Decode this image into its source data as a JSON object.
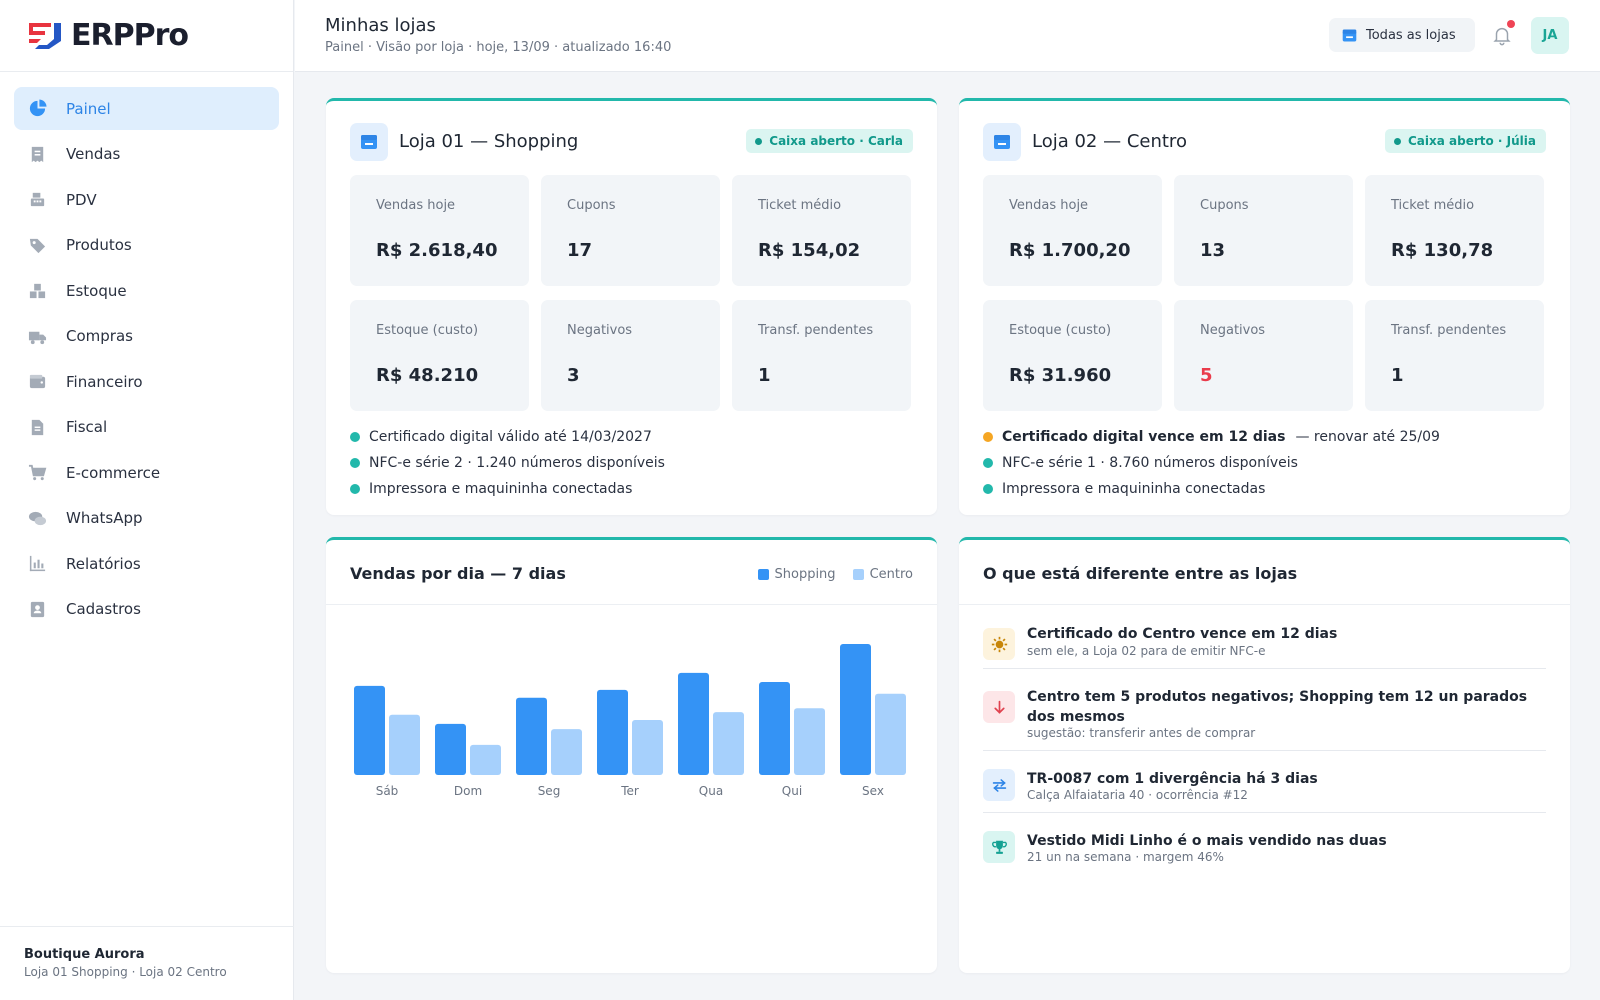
{
  "brand": {
    "name": "ERPPro",
    "accent": "#e8343f",
    "secondary": "#2457c5"
  },
  "sidebar": {
    "items": [
      {
        "label": "Painel",
        "icon": "pie-chart-icon",
        "active": true
      },
      {
        "label": "Vendas",
        "icon": "receipt-icon"
      },
      {
        "label": "PDV",
        "icon": "cash-register-icon"
      },
      {
        "label": "Produtos",
        "icon": "tags-icon"
      },
      {
        "label": "Estoque",
        "icon": "boxes-icon"
      },
      {
        "label": "Compras",
        "icon": "truck-icon"
      },
      {
        "label": "Financeiro",
        "icon": "wallet-icon"
      },
      {
        "label": "Fiscal",
        "icon": "document-icon"
      },
      {
        "label": "E-commerce",
        "icon": "cart-icon"
      },
      {
        "label": "WhatsApp",
        "icon": "chat-icon"
      },
      {
        "label": "Relatórios",
        "icon": "bar-chart-icon"
      },
      {
        "label": "Cadastros",
        "icon": "contact-book-icon"
      }
    ],
    "footer": {
      "company": "Boutique Aurora",
      "stores": "Loja 01 Shopping · Loja 02 Centro"
    }
  },
  "header": {
    "title": "Minhas lojas",
    "subtitle": "Painel · Visão por loja · hoje, 13/09 · atualizado 16:40",
    "store_selector": "Todas as lojas",
    "avatar": "JA"
  },
  "stores": [
    {
      "name": "Loja 01 — Shopping",
      "badge": "Caixa aberto · Carla",
      "metrics": [
        {
          "label": "Vendas hoje",
          "value": "R$ 2.618,40"
        },
        {
          "label": "Cupons",
          "value": "17"
        },
        {
          "label": "Ticket médio",
          "value": "R$ 154,02"
        },
        {
          "label": "Estoque (custo)",
          "value": "R$ 48.210"
        },
        {
          "label": "Negativos",
          "value": "3"
        },
        {
          "label": "Transf. pendentes",
          "value": "1"
        }
      ],
      "status": [
        {
          "text": "Certificado digital válido até 14/03/2027",
          "color": "#22b8ab"
        },
        {
          "text": "NFC-e série 2 · 1.240 números disponíveis",
          "color": "#22b8ab"
        },
        {
          "text": "Impressora e maquininha conectadas",
          "color": "#22b8ab"
        }
      ]
    },
    {
      "name": "Loja 02 — Centro",
      "badge": "Caixa aberto · Júlia",
      "metrics": [
        {
          "label": "Vendas hoje",
          "value": "R$ 1.700,20"
        },
        {
          "label": "Cupons",
          "value": "13"
        },
        {
          "label": "Ticket médio",
          "value": "R$ 130,78"
        },
        {
          "label": "Estoque (custo)",
          "value": "R$ 31.960"
        },
        {
          "label": "Negativos",
          "value": "5"
        },
        {
          "label": "Transf. pendentes",
          "value": "1"
        }
      ],
      "status": [
        {
          "text": "Certificado digital vence em 12 dias",
          "extra": "— renovar até 25/09",
          "color": "#f5a623"
        },
        {
          "text": "NFC-e série 1 · 8.760 números disponíveis",
          "color": "#22b8ab"
        },
        {
          "text": "Impressora e maquininha conectadas",
          "color": "#22b8ab"
        }
      ]
    }
  ],
  "sales_chart": {
    "title": "Vendas por dia — 7 dias",
    "legend": [
      "Shopping",
      "Centro"
    ]
  },
  "chart_data": {
    "type": "bar",
    "title": "Vendas por dia — 7 dias",
    "categories": [
      "Sáb",
      "Dom",
      "Seg",
      "Ter",
      "Qua",
      "Qui",
      "Sex"
    ],
    "series": [
      {
        "name": "Shopping",
        "color": "#3493f5",
        "values": [
          68,
          39,
          59,
          65,
          78,
          71,
          100
        ]
      },
      {
        "name": "Centro",
        "color": "#a6d0fc",
        "values": [
          46,
          23,
          35,
          42,
          48,
          51,
          62
        ]
      }
    ],
    "ylim": [
      0,
      100
    ],
    "grid": false,
    "legend_position": "top-right"
  },
  "differences": {
    "title": "O que está diferente entre as lojas",
    "items": [
      {
        "title": "Certificado do Centro vence em 12 dias",
        "sub": "sem ele, a Loja 02 para de emitir NFC-e",
        "icon": "sun-icon",
        "bg": "#fdf3dd",
        "fg": "#c7860a"
      },
      {
        "title": "Centro tem 5 produtos negativos; Shopping tem 12 un parados dos mesmos",
        "sub": "sugestão: transferir antes de comprar",
        "icon": "arrow-down-icon",
        "bg": "#fde6e8",
        "fg": "#e0424f"
      },
      {
        "title": "TR-0087 com 1 divergência há 3 dias",
        "sub": "Calça Alfaiataria 40 · ocorrência #12",
        "icon": "swap-arrows-icon",
        "bg": "#e3effd",
        "fg": "#2d84e6"
      },
      {
        "title": "Vestido Midi Linho é o mais vendido nas duas",
        "sub": "21 un na semana · margem 46%",
        "icon": "trophy-icon",
        "bg": "#d9f5f1",
        "fg": "#14a193"
      }
    ]
  }
}
